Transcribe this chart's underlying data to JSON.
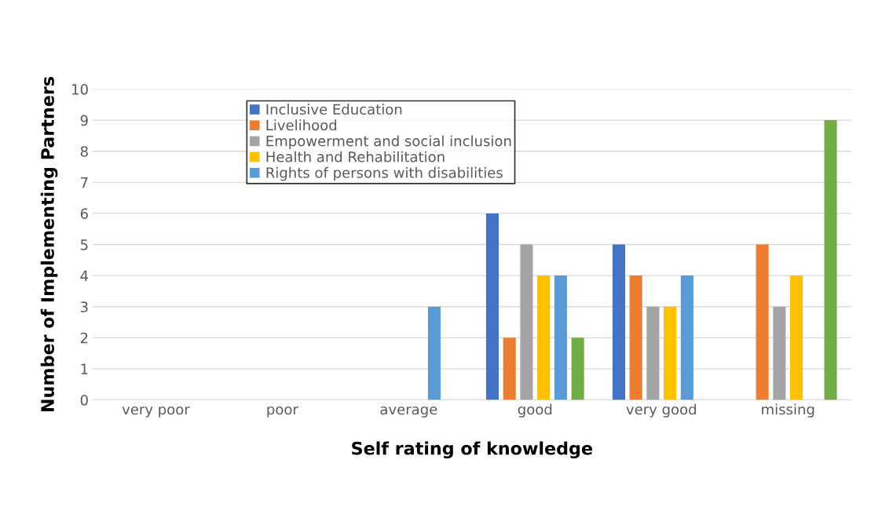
{
  "chart_data": {
    "type": "bar",
    "xlabel": "Self rating of knowledge",
    "ylabel": "Number of Implementing Partners",
    "categories": [
      "very poor",
      "poor",
      "average",
      "good",
      "very good",
      "missing"
    ],
    "series": [
      {
        "name": "Inclusive Education",
        "color": "#4472c4",
        "values": [
          0,
          0,
          0,
          6,
          5,
          0
        ]
      },
      {
        "name": "Livelihood",
        "color": "#ed7d31",
        "values": [
          0,
          0,
          0,
          2,
          4,
          5
        ]
      },
      {
        "name": "Empowerment and social inclusion",
        "color": "#a5a5a5",
        "values": [
          0,
          0,
          0,
          5,
          3,
          3
        ]
      },
      {
        "name": "Health and Rehabilitation",
        "color": "#ffc000",
        "values": [
          0,
          0,
          0,
          4,
          3,
          4
        ]
      },
      {
        "name": "Rights of persons with disabilities",
        "color": "#5b9bd5",
        "values": [
          0,
          0,
          3,
          4,
          4,
          0
        ]
      },
      {
        "color": "#70ad47",
        "values": [
          0,
          0,
          0,
          2,
          0,
          9
        ]
      }
    ],
    "ylim": [
      0,
      10
    ],
    "yticks": [
      0,
      1,
      2,
      3,
      4,
      5,
      6,
      7,
      8,
      9,
      10
    ],
    "grid": "y",
    "legend": "top"
  }
}
